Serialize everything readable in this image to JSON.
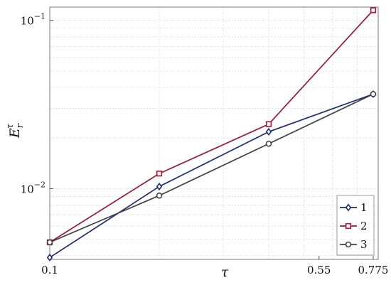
{
  "chart_data": {
    "type": "line",
    "title": "",
    "xlabel": "τ",
    "ylabel_main": "E",
    "ylabel_sub": "r",
    "ylabel_sup": "τ",
    "x_scale": "log",
    "y_scale": "log",
    "xlim": [
      0.1,
      0.8
    ],
    "ylim": [
      0.0038,
      0.12
    ],
    "x_ticks": [
      {
        "value": 0.1,
        "label": "0.1"
      },
      {
        "value": 0.55,
        "label": "0.55"
      },
      {
        "value": 0.775,
        "label": "0.775"
      }
    ],
    "y_ticks": [
      {
        "value": 0.01,
        "base": "10",
        "exp": "−2"
      },
      {
        "value": 0.1,
        "base": "10",
        "exp": "−1"
      }
    ],
    "grid": true,
    "legend_position": "bottom-right",
    "series": [
      {
        "name": "1",
        "color": "#1b2a7a",
        "marker": "diamond",
        "x": [
          0.1,
          0.2,
          0.4,
          0.775
        ],
        "y": [
          0.0039,
          0.0103,
          0.0218,
          0.0365
        ]
      },
      {
        "name": "2",
        "color": "#a3172e",
        "marker": "square",
        "x": [
          0.1,
          0.2,
          0.4,
          0.775
        ],
        "y": [
          0.0048,
          0.0123,
          0.0242,
          0.115
        ]
      },
      {
        "name": "3",
        "color": "#404040",
        "marker": "circle",
        "x": [
          0.1,
          0.2,
          0.4,
          0.775
        ],
        "y": [
          0.0048,
          0.0091,
          0.0185,
          0.0365
        ]
      }
    ]
  }
}
